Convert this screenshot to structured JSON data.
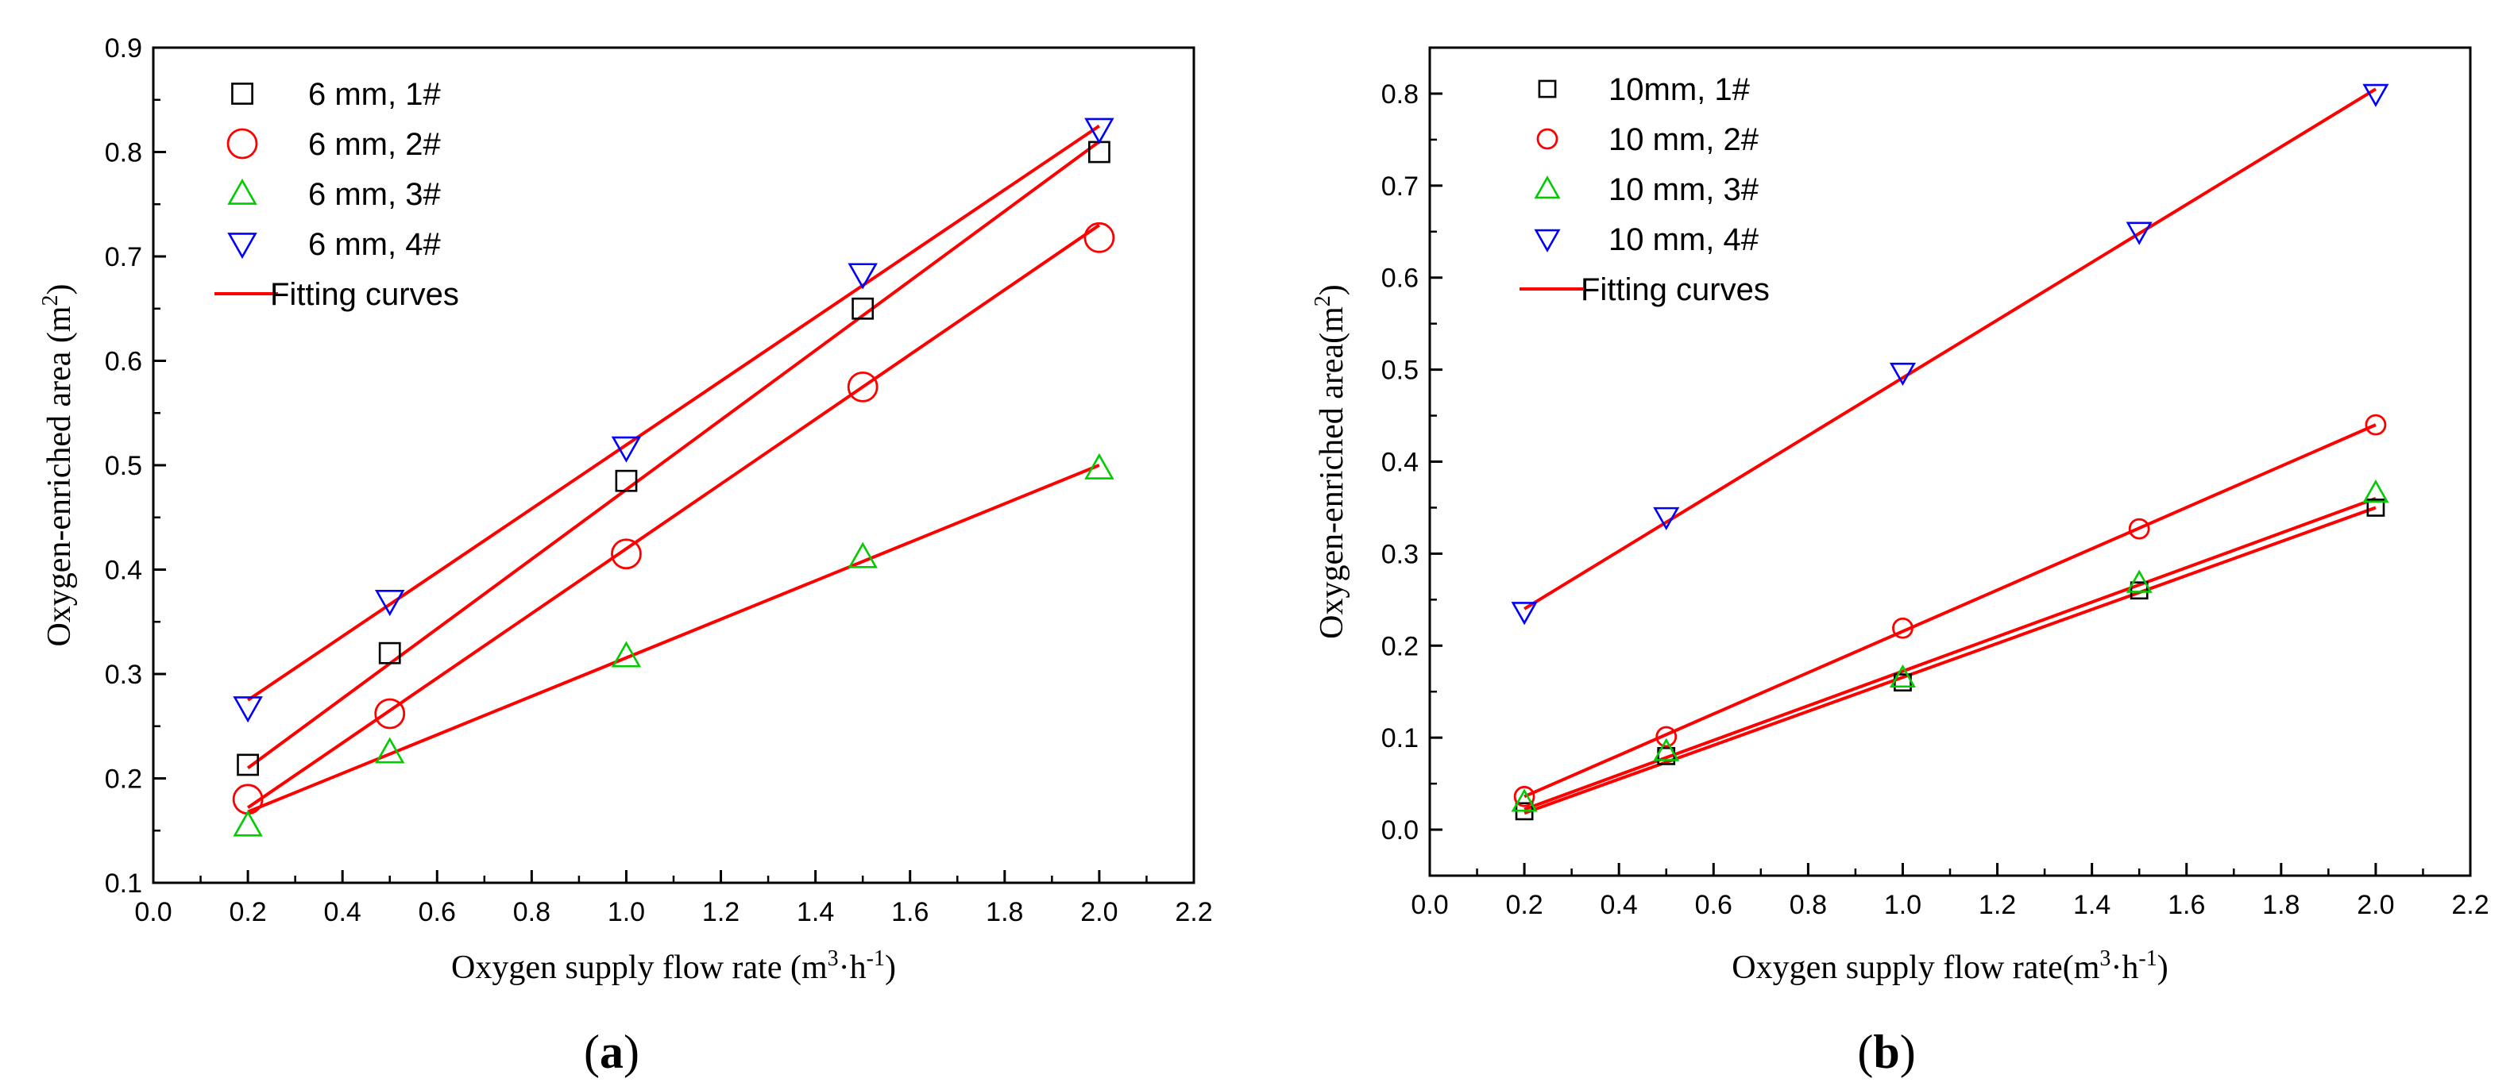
{
  "chart_data": [
    {
      "type": "scatter",
      "panel_label_open": "(",
      "panel_label_letter": "a",
      "panel_label_close": ")",
      "xlabel": "Oxygen supply flow rate (m",
      "xlabel_sup1": "3",
      "xlabel_mid": "·h",
      "xlabel_sup2": "-1",
      "xlabel_end": ")",
      "ylabel": "Oxygen-enriched area (m",
      "ylabel_sup": "2",
      "ylabel_end": ")",
      "xlim": [
        0.0,
        2.2
      ],
      "ylim": [
        0.1,
        0.9
      ],
      "xticks": [
        "0.0",
        "0.2",
        "0.4",
        "0.6",
        "0.8",
        "1.0",
        "1.2",
        "1.4",
        "1.6",
        "1.8",
        "2.0",
        "2.2"
      ],
      "yticks": [
        "0.1",
        "0.2",
        "0.3",
        "0.4",
        "0.5",
        "0.6",
        "0.7",
        "0.8",
        "0.9"
      ],
      "legend_position": "top-left",
      "fit_label": "Fitting curves",
      "fit_color": "#ff0000",
      "series": [
        {
          "name": "6 mm, 1#",
          "marker": "square",
          "color": "#000000",
          "x": [
            0.2,
            0.5,
            1.0,
            1.5,
            2.0
          ],
          "y": [
            0.213,
            0.32,
            0.485,
            0.65,
            0.8
          ],
          "fit": [
            0.21,
            0.81
          ]
        },
        {
          "name": "6 mm, 2#",
          "marker": "circle",
          "color": "#ff0000",
          "x": [
            0.2,
            0.5,
            1.0,
            1.5,
            2.0
          ],
          "y": [
            0.18,
            0.262,
            0.415,
            0.575,
            0.718
          ],
          "fit": [
            0.172,
            0.73
          ]
        },
        {
          "name": "6 mm, 3#",
          "marker": "triangle-up",
          "color": "#00cc00",
          "x": [
            0.2,
            0.5,
            1.0,
            1.5,
            2.0
          ],
          "y": [
            0.155,
            0.225,
            0.317,
            0.412,
            0.497
          ],
          "fit": [
            0.168,
            0.5
          ]
        },
        {
          "name": "6 mm, 4#",
          "marker": "triangle-down",
          "color": "#0000ff",
          "x": [
            0.2,
            0.5,
            1.0,
            1.5,
            2.0
          ],
          "y": [
            0.268,
            0.37,
            0.517,
            0.683,
            0.822
          ],
          "fit": [
            0.275,
            0.825
          ]
        }
      ]
    },
    {
      "type": "scatter",
      "panel_label_open": "(",
      "panel_label_letter": "b",
      "panel_label_close": ")",
      "xlabel": "Oxygen supply flow rate(m",
      "xlabel_sup1": "3",
      "xlabel_mid": "·h",
      "xlabel_sup2": "-1",
      "xlabel_end": ")",
      "ylabel": "Oxygen-enriched area(m",
      "ylabel_sup": "2",
      "ylabel_end": ")",
      "xlim": [
        0.0,
        2.2
      ],
      "ylim": [
        -0.05,
        0.85
      ],
      "xticks": [
        "0.0",
        "0.2",
        "0.4",
        "0.6",
        "0.8",
        "1.0",
        "1.2",
        "1.4",
        "1.6",
        "1.8",
        "2.0",
        "2.2"
      ],
      "yticks": [
        "0.0",
        "0.1",
        "0.2",
        "0.3",
        "0.4",
        "0.5",
        "0.6",
        "0.7",
        "0.8"
      ],
      "legend_position": "top-left",
      "fit_label": "Fitting curves",
      "fit_color": "#ff0000",
      "series": [
        {
          "name": "10mm, 1#",
          "marker": "square",
          "color": "#000000",
          "x": [
            0.2,
            0.5,
            1.0,
            1.5,
            2.0
          ],
          "y": [
            0.02,
            0.08,
            0.16,
            0.26,
            0.35
          ],
          "fit": [
            0.018,
            0.35
          ]
        },
        {
          "name": "10 mm, 2#",
          "marker": "circle",
          "color": "#ff0000",
          "x": [
            0.2,
            0.5,
            1.0,
            1.5,
            2.0
          ],
          "y": [
            0.036,
            0.101,
            0.219,
            0.327,
            0.44
          ],
          "fit": [
            0.036,
            0.44
          ]
        },
        {
          "name": "10 mm, 3#",
          "marker": "triangle-up",
          "color": "#00cc00",
          "x": [
            0.2,
            0.5,
            1.0,
            1.5,
            2.0
          ],
          "y": [
            0.03,
            0.085,
            0.165,
            0.268,
            0.366
          ],
          "fit": [
            0.022,
            0.36
          ]
        },
        {
          "name": "10 mm, 4#",
          "marker": "triangle-down",
          "color": "#0000ff",
          "x": [
            0.2,
            0.5,
            1.0,
            1.5,
            2.0
          ],
          "y": [
            0.237,
            0.34,
            0.497,
            0.65,
            0.8
          ],
          "fit": [
            0.24,
            0.805
          ]
        }
      ]
    }
  ]
}
